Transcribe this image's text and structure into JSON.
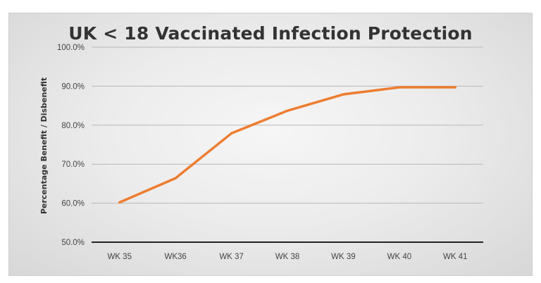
{
  "chart_data": {
    "type": "line",
    "title": "UK < 18 Vaccinated Infection Protection",
    "ylabel": "Percentage Benefit / Disbenefit",
    "xlabel": "",
    "categories": [
      "WK 35",
      "WK36",
      "WK 37",
      "WK 38",
      "WK 39",
      "WK 40",
      "WK 41"
    ],
    "series": [
      {
        "values": [
          60.2,
          66.4,
          77.9,
          83.7,
          87.9,
          89.7,
          89.7
        ]
      }
    ],
    "ylim": [
      50,
      100
    ],
    "yticks": [
      "50.0%",
      "60.0%",
      "70.0%",
      "80.0%",
      "90.0%",
      "100.0%"
    ],
    "grid": true,
    "line_color": "#ED7D31"
  }
}
